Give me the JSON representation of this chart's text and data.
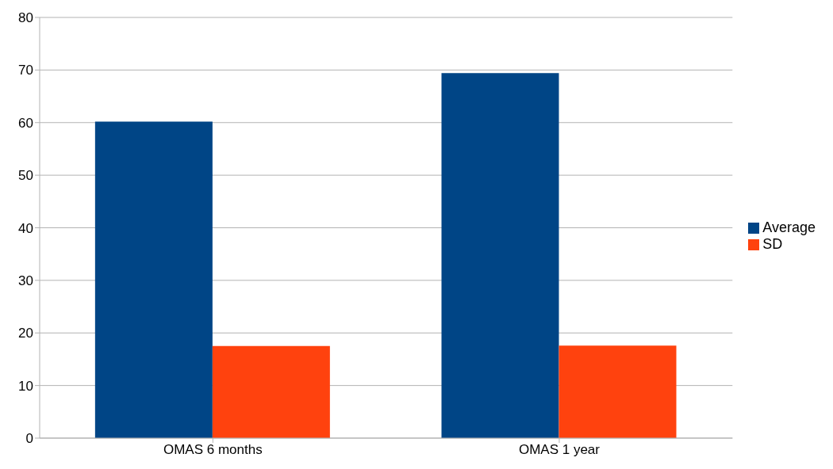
{
  "chart_data": {
    "type": "bar",
    "categories": [
      "OMAS 6 months",
      "OMAS 1 year"
    ],
    "series": [
      {
        "name": "Average",
        "color": "#004586",
        "values": [
          60.2,
          69.4
        ]
      },
      {
        "name": "SD",
        "color": "#ff420e",
        "values": [
          17.5,
          17.6
        ]
      }
    ],
    "ylim": [
      0,
      80
    ],
    "yticks": [
      0,
      10,
      20,
      30,
      40,
      50,
      60,
      70,
      80
    ],
    "grid": "y",
    "legend": "right"
  }
}
